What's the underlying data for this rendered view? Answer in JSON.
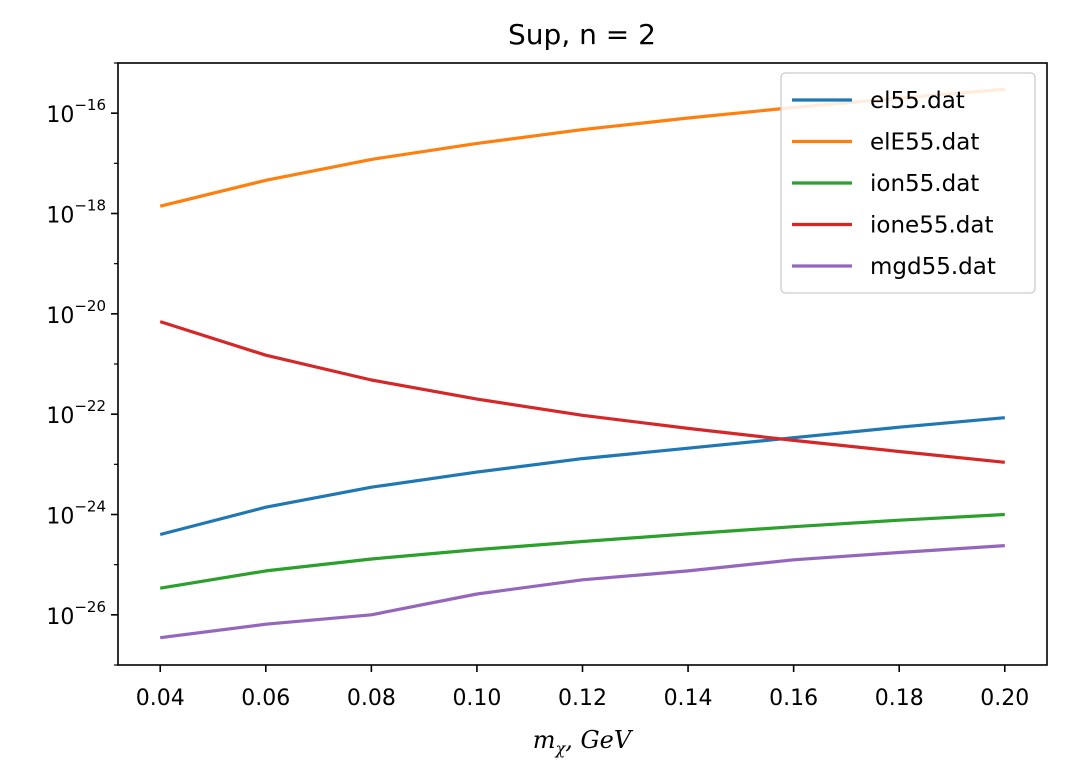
{
  "chart_data": {
    "type": "line",
    "title": "Sup, n = 2",
    "xlabel": "m_χ, GeV",
    "xlabel_main": "m",
    "xlabel_sub": "χ",
    "xlabel_rest": ", GeV",
    "ylabel": "",
    "yscale": "log",
    "xlim": [
      0.032,
      0.208
    ],
    "ylim_exp": [
      -27,
      -15
    ],
    "x_ticks": [
      0.04,
      0.06,
      0.08,
      0.1,
      0.12,
      0.14,
      0.16,
      0.18,
      0.2
    ],
    "x_tick_labels": [
      "0.04",
      "0.06",
      "0.08",
      "0.10",
      "0.12",
      "0.14",
      "0.16",
      "0.18",
      "0.20"
    ],
    "y_tick_exponents": [
      -16,
      -18,
      -20,
      -22,
      -24,
      -26
    ],
    "y_tick_base": "10",
    "y_tick_exp_labels": [
      "−16",
      "−18",
      "−20",
      "−22",
      "−24",
      "−26"
    ],
    "grid": false,
    "legend_position": "top-right",
    "x": [
      0.04,
      0.06,
      0.08,
      0.1,
      0.12,
      0.14,
      0.16,
      0.18,
      0.2
    ],
    "series": [
      {
        "name": "el55.dat",
        "color": "#1f77b4",
        "values": [
          4e-25,
          1.4e-24,
          3.5e-24,
          7e-24,
          1.3e-23,
          2.1e-23,
          3.4e-23,
          5.5e-23,
          8.5e-23
        ]
      },
      {
        "name": "elE55.dat",
        "color": "#ff7f0e",
        "values": [
          1.4e-18,
          4.6e-18,
          1.2e-17,
          2.5e-17,
          4.7e-17,
          8e-17,
          1.3e-16,
          2e-16,
          3e-16
        ]
      },
      {
        "name": "ion55.dat",
        "color": "#2ca02c",
        "values": [
          3.4e-26,
          7.5e-26,
          1.3e-25,
          2e-25,
          2.9e-25,
          4.1e-25,
          5.7e-25,
          7.7e-25,
          1e-24
        ]
      },
      {
        "name": "ione55.dat",
        "color": "#d62728",
        "values": [
          7e-21,
          1.5e-21,
          4.8e-22,
          2e-22,
          9.5e-23,
          5.2e-23,
          3e-23,
          1.8e-23,
          1.1e-23
        ]
      },
      {
        "name": "mgd55.dat",
        "color": "#9467bd",
        "values": [
          3.5e-27,
          6.5e-27,
          1e-26,
          2.6e-26,
          5e-26,
          7.5e-26,
          1.25e-25,
          1.75e-25,
          2.4e-25
        ]
      }
    ]
  }
}
